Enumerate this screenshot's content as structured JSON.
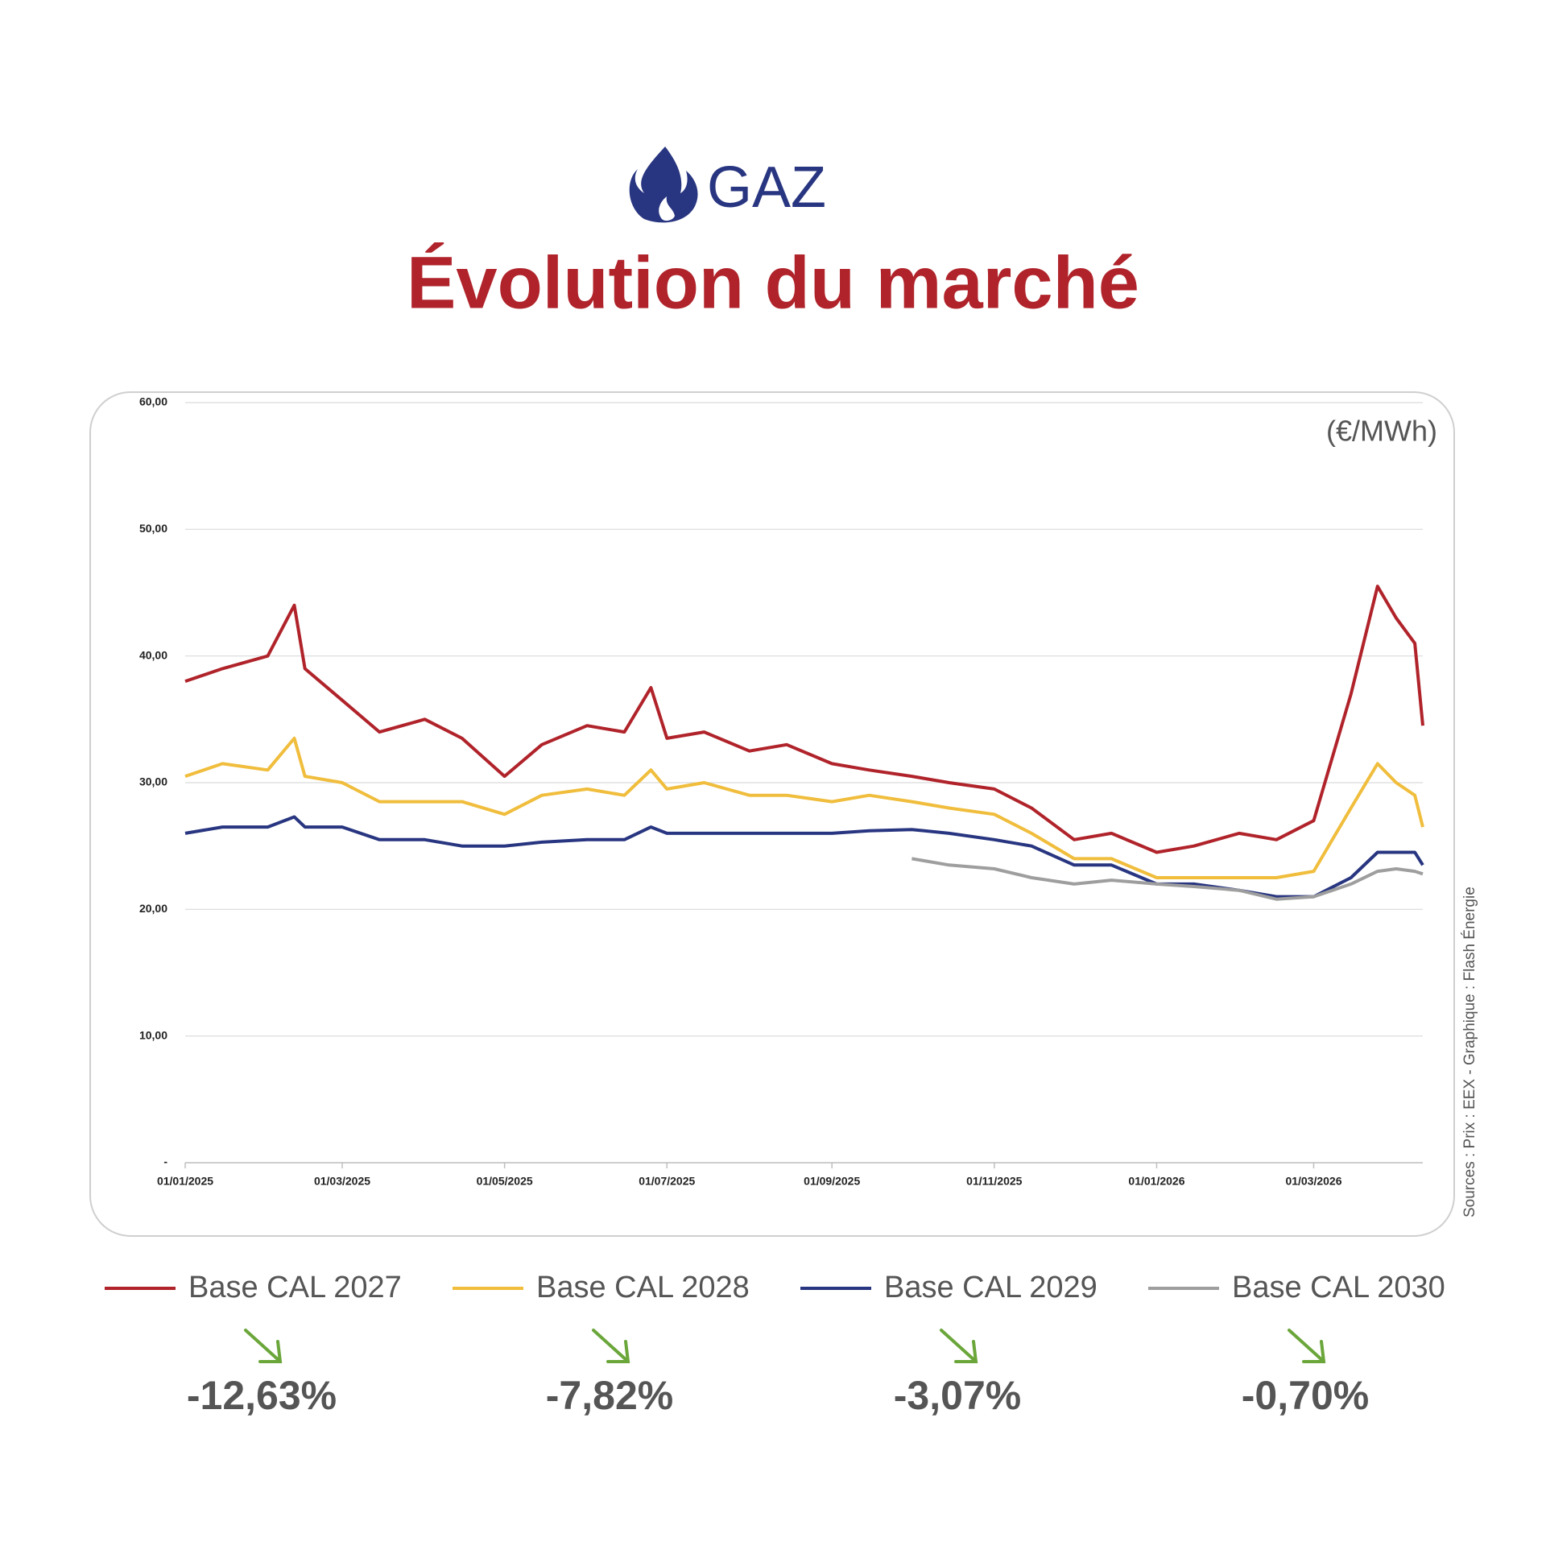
{
  "header": {
    "label": "GAZ",
    "title": "Évolution du marché"
  },
  "chart_data": {
    "type": "line",
    "unit": "(€/MWh)",
    "x": [
      "01/01/2025",
      "15/01/2025",
      "01/02/2025",
      "11/02/2025",
      "15/02/2025",
      "01/03/2025",
      "15/03/2025",
      "01/04/2025",
      "15/04/2025",
      "01/05/2025",
      "15/05/2025",
      "01/06/2025",
      "15/06/2025",
      "25/06/2025",
      "01/07/2025",
      "15/07/2025",
      "01/08/2025",
      "15/08/2025",
      "01/09/2025",
      "15/09/2025",
      "01/10/2025",
      "15/10/2025",
      "01/11/2025",
      "15/11/2025",
      "01/12/2025",
      "15/12/2025",
      "01/01/2026",
      "15/01/2026",
      "01/02/2026",
      "15/02/2026",
      "01/03/2026",
      "15/03/2026",
      "25/03/2026",
      "01/04/2026",
      "08/04/2026",
      "11/04/2026"
    ],
    "xlim": [
      "01/01/2025",
      "11/04/2026"
    ],
    "xticks": [
      "01/01/2025",
      "01/03/2025",
      "01/05/2025",
      "01/07/2025",
      "01/09/2025",
      "01/11/2025",
      "01/01/2026",
      "01/03/2026"
    ],
    "ylim": [
      0,
      60
    ],
    "yticks": [
      {
        "value": 0,
        "label": "-"
      },
      {
        "value": 10,
        "label": "10,00"
      },
      {
        "value": 20,
        "label": "20,00"
      },
      {
        "value": 30,
        "label": "30,00"
      },
      {
        "value": 40,
        "label": "40,00"
      },
      {
        "value": 50,
        "label": "50,00"
      },
      {
        "value": 60,
        "label": "60,00"
      }
    ],
    "grid": true,
    "series": [
      {
        "name": "Base CAL 2027",
        "color": "#b0232a",
        "change": "-12,63%",
        "values": [
          38,
          39,
          40,
          44,
          39,
          36.5,
          34,
          35,
          33.5,
          30.5,
          33,
          34.5,
          34,
          37.5,
          33.5,
          34,
          32.5,
          33,
          31.5,
          31,
          30.5,
          30,
          29.5,
          28,
          25.5,
          26,
          24.5,
          25,
          26,
          25.5,
          27,
          37,
          45.5,
          43,
          41,
          34.5
        ]
      },
      {
        "name": "Base CAL 2028",
        "color": "#f0bd3c",
        "change": "-7,82%",
        "values": [
          30.5,
          31.5,
          31,
          33.5,
          30.5,
          30,
          28.5,
          28.5,
          28.5,
          27.5,
          29,
          29.5,
          29,
          31,
          29.5,
          30,
          29,
          29,
          28.5,
          29,
          28.5,
          28,
          27.5,
          26,
          24,
          24,
          22.5,
          22.5,
          22.5,
          22.5,
          23,
          28,
          31.5,
          30,
          29,
          26.5
        ]
      },
      {
        "name": "Base CAL 2029",
        "color": "#283580",
        "change": "-3,07%",
        "values": [
          26,
          26.5,
          26.5,
          27.3,
          26.5,
          26.5,
          25.5,
          25.5,
          25,
          25,
          25.3,
          25.5,
          25.5,
          26.5,
          26,
          26,
          26,
          26,
          26,
          26.2,
          26.3,
          26,
          25.5,
          25,
          23.5,
          23.5,
          22,
          22,
          21.5,
          21,
          21,
          22.5,
          24.5,
          24.5,
          24.5,
          23.5
        ]
      },
      {
        "name": "Base CAL 2030",
        "color": "#9e9e9e",
        "change": "-0,70%",
        "values": [
          null,
          null,
          null,
          null,
          null,
          null,
          null,
          null,
          null,
          null,
          null,
          null,
          null,
          null,
          null,
          null,
          null,
          null,
          null,
          null,
          24,
          23.5,
          23.2,
          22.5,
          22,
          22.3,
          22,
          21.8,
          21.5,
          20.8,
          21,
          22,
          23,
          23.2,
          23,
          22.8
        ]
      }
    ]
  },
  "source": "Sources : Prix : EEX - Graphique : Flash Énergie"
}
